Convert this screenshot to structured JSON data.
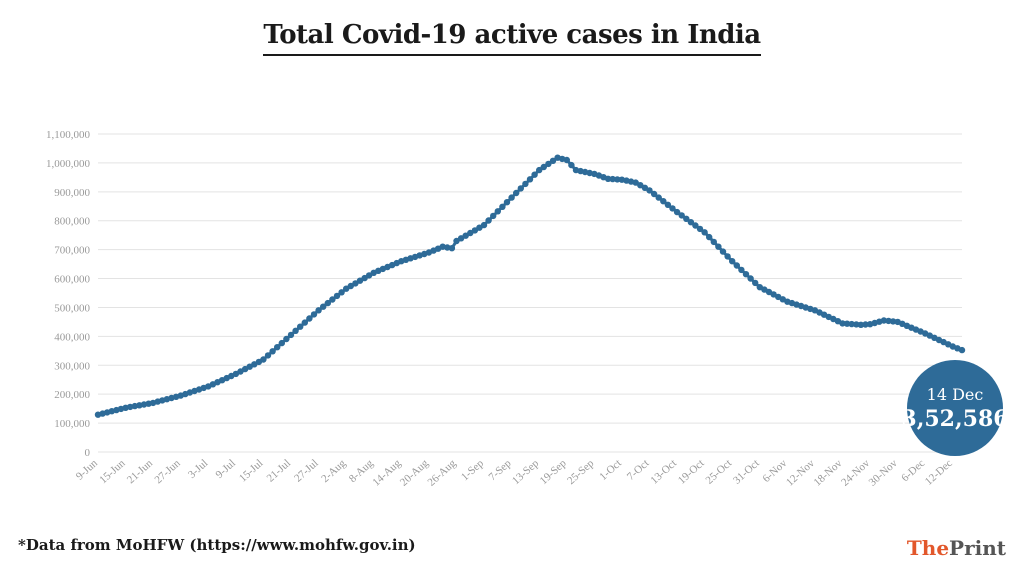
{
  "title": "Total Covid-19 active cases in India",
  "footnote": "*Data from MoHFW (https://www.mohfw.gov.in)",
  "brand": {
    "part1": "The",
    "part2": "Print"
  },
  "callout": {
    "date": "14 Dec",
    "value": "3,52,586"
  },
  "colors": {
    "line": "#2e6b98",
    "callout_bg": "#2e6b98",
    "grid": "#e3e3e3",
    "axis_text": "#9a9a9a"
  },
  "chart_data": {
    "type": "line",
    "title": "Total Covid-19 active cases in India",
    "xlabel": "",
    "ylabel": "",
    "ylim": [
      0,
      1100000
    ],
    "y_ticks": [
      0,
      100000,
      200000,
      300000,
      400000,
      500000,
      600000,
      700000,
      800000,
      900000,
      1000000,
      1100000
    ],
    "y_tick_labels": [
      "0",
      "100,000",
      "200,000",
      "300,000",
      "400,000",
      "500,000",
      "600,000",
      "700,000",
      "800,000",
      "900,000",
      "1,000,000",
      "1,100,000"
    ],
    "x_tick_labels": [
      "9-Jun",
      "15-Jun",
      "21-Jun",
      "27-Jun",
      "3-Jul",
      "9-Jul",
      "15-Jul",
      "21-Jul",
      "27-Jul",
      "2-Aug",
      "8-Aug",
      "14-Aug",
      "20-Aug",
      "26-Aug",
      "1-Sep",
      "7-Sep",
      "13-Sep",
      "19-Sep",
      "25-Sep",
      "1-Oct",
      "7-Oct",
      "13-Oct",
      "19-Oct",
      "25-Oct",
      "31-Oct",
      "6-Nov",
      "12-Nov",
      "18-Nov",
      "24-Nov",
      "30-Nov",
      "6-Dec",
      "12-Dec"
    ],
    "grid": true,
    "legend": "none",
    "series": [
      {
        "x_start": "9-Jun",
        "x_end": "14-Dec",
        "interval_days": 1,
        "anchor_values": [
          [
            "9-Jun",
            129000
          ],
          [
            "15-Jun",
            153000
          ],
          [
            "21-Jun",
            170000
          ],
          [
            "27-Jun",
            195000
          ],
          [
            "3-Jul",
            227000
          ],
          [
            "9-Jul",
            270000
          ],
          [
            "15-Jul",
            320000
          ],
          [
            "21-Jul",
            405000
          ],
          [
            "27-Jul",
            490000
          ],
          [
            "2-Aug",
            565000
          ],
          [
            "8-Aug",
            620000
          ],
          [
            "14-Aug",
            660000
          ],
          [
            "20-Aug",
            690000
          ],
          [
            "23-Aug",
            710000
          ],
          [
            "25-Aug",
            705000
          ],
          [
            "26-Aug",
            730000
          ],
          [
            "1-Sep",
            785000
          ],
          [
            "7-Sep",
            880000
          ],
          [
            "13-Sep",
            975000
          ],
          [
            "17-Sep",
            1018000
          ],
          [
            "19-Sep",
            1010000
          ],
          [
            "21-Sep",
            975000
          ],
          [
            "25-Sep",
            962000
          ],
          [
            "28-Sep",
            945000
          ],
          [
            "1-Oct",
            942000
          ],
          [
            "4-Oct",
            932000
          ],
          [
            "7-Oct",
            905000
          ],
          [
            "13-Oct",
            830000
          ],
          [
            "19-Oct",
            760000
          ],
          [
            "25-Oct",
            660000
          ],
          [
            "31-Oct",
            570000
          ],
          [
            "6-Nov",
            520000
          ],
          [
            "12-Nov",
            490000
          ],
          [
            "18-Nov",
            445000
          ],
          [
            "22-Nov",
            440000
          ],
          [
            "24-Nov",
            442000
          ],
          [
            "27-Nov",
            455000
          ],
          [
            "30-Nov",
            450000
          ],
          [
            "6-Dec",
            410000
          ],
          [
            "12-Dec",
            365000
          ],
          [
            "14-Dec",
            352586
          ]
        ]
      }
    ]
  }
}
